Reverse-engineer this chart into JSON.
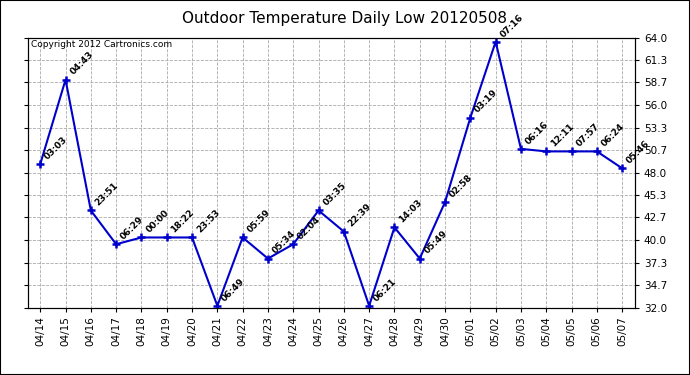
{
  "title": "Outdoor Temperature Daily Low 20120508",
  "copyright": "Copyright 2012 Cartronics.com",
  "dates": [
    "04/14",
    "04/15",
    "04/16",
    "04/17",
    "04/18",
    "04/19",
    "04/20",
    "04/21",
    "04/22",
    "04/23",
    "04/24",
    "04/25",
    "04/26",
    "04/27",
    "04/28",
    "04/29",
    "04/30",
    "05/01",
    "05/02",
    "05/03",
    "05/04",
    "05/05",
    "05/06",
    "05/07"
  ],
  "values": [
    49.0,
    59.0,
    43.5,
    39.5,
    40.3,
    40.3,
    40.3,
    32.2,
    40.3,
    37.8,
    39.5,
    43.5,
    41.0,
    32.2,
    41.5,
    37.8,
    44.5,
    54.5,
    63.5,
    50.8,
    50.5,
    50.5,
    50.5,
    48.5
  ],
  "time_labels": [
    "03:03",
    "04:43",
    "23:51",
    "06:29",
    "00:00",
    "18:22",
    "23:53",
    "06:49",
    "05:59",
    "05:34",
    "02:04",
    "03:35",
    "22:39",
    "06:21",
    "14:03",
    "05:49",
    "02:58",
    "03:19",
    "07:16",
    "06:16",
    "12:11",
    "07:57",
    "06:24",
    "05:46"
  ],
  "line_color": "#0000cc",
  "marker_color": "#0000cc",
  "bg_color": "#ffffff",
  "plot_bg_color": "#ffffff",
  "grid_color": "#aaaaaa",
  "title_fontsize": 11,
  "tick_fontsize": 7.5,
  "label_fontsize": 6.5,
  "copyright_fontsize": 6.5,
  "ylim": [
    32.0,
    64.0
  ],
  "yticks": [
    32.0,
    34.7,
    37.3,
    40.0,
    42.7,
    45.3,
    48.0,
    50.7,
    53.3,
    56.0,
    58.7,
    61.3,
    64.0
  ]
}
